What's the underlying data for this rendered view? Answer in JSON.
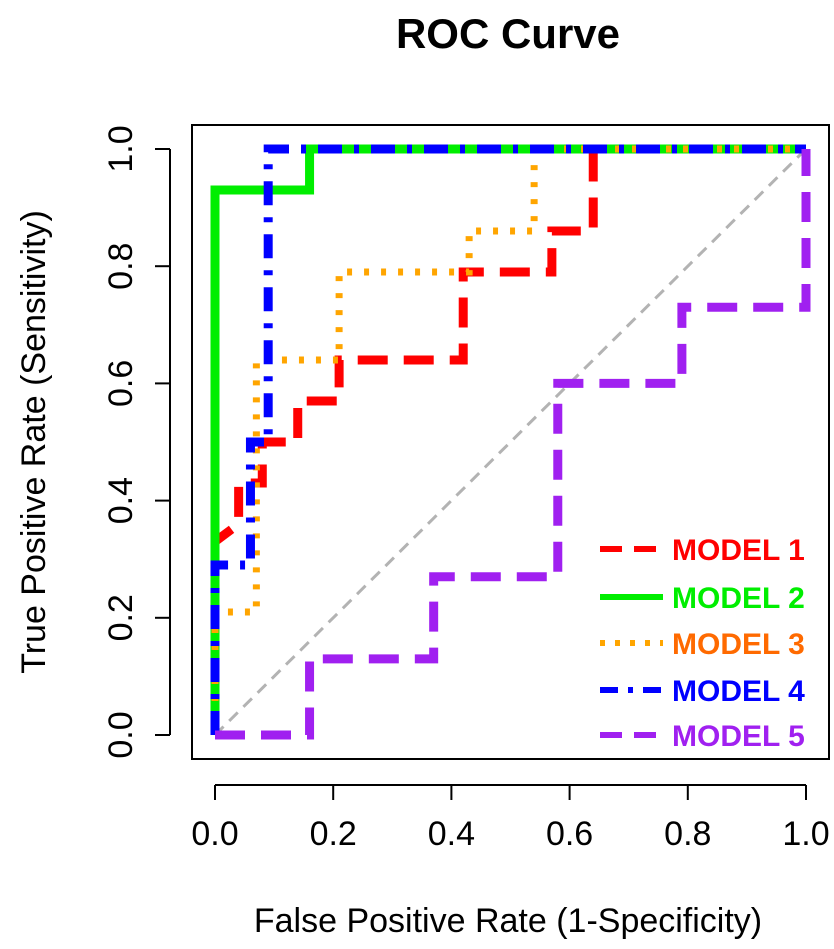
{
  "chart_data": {
    "type": "line",
    "title": "ROC Curve",
    "xlabel": "False Positive Rate (1-Specificity)",
    "ylabel": "True Positive Rate (Sensitivity)",
    "xlim": [
      0.0,
      1.0
    ],
    "ylim": [
      0.0,
      1.0
    ],
    "x_ticks": [
      0.0,
      0.2,
      0.4,
      0.6,
      0.8,
      1.0
    ],
    "y_ticks": [
      0.0,
      0.2,
      0.4,
      0.6,
      0.8,
      1.0
    ],
    "x_tick_labels": [
      "0.0",
      "0.2",
      "0.4",
      "0.6",
      "0.8",
      "1.0"
    ],
    "y_tick_labels": [
      "0.0",
      "0.2",
      "0.4",
      "0.6",
      "0.8",
      "1.0"
    ],
    "grid": false,
    "legend_position": "bottom-right",
    "reference_line": {
      "x": [
        0,
        1
      ],
      "y": [
        0,
        1
      ],
      "color": "#b3b3b3",
      "style": "dashed"
    },
    "series": [
      {
        "name": "MODEL 1",
        "color": "#ff0000",
        "dash": "long-dash",
        "x": [
          0.0,
          0.0,
          0.04,
          0.04,
          0.08,
          0.08,
          0.14,
          0.14,
          0.21,
          0.21,
          0.42,
          0.42,
          0.57,
          0.57,
          0.64,
          0.64,
          1.0
        ],
        "y": [
          0.0,
          0.33,
          0.36,
          0.43,
          0.43,
          0.5,
          0.5,
          0.57,
          0.57,
          0.64,
          0.64,
          0.79,
          0.79,
          0.86,
          0.86,
          1.0,
          1.0
        ]
      },
      {
        "name": "MODEL 2",
        "color": "#00ee00",
        "dash": "solid",
        "x": [
          0.0,
          0.0,
          0.16,
          0.16,
          1.0
        ],
        "y": [
          0.0,
          0.93,
          0.93,
          1.0,
          1.0
        ]
      },
      {
        "name": "MODEL 3",
        "color": "#ffa500",
        "dash": "dotted",
        "x": [
          0.0,
          0.0,
          0.07,
          0.07,
          0.21,
          0.21,
          0.43,
          0.43,
          0.54,
          0.54,
          1.0
        ],
        "y": [
          0.0,
          0.21,
          0.21,
          0.64,
          0.64,
          0.79,
          0.79,
          0.86,
          0.86,
          1.0,
          1.0
        ]
      },
      {
        "name": "MODEL 4",
        "color": "#0000ff",
        "dash": "dash-dot",
        "x": [
          0.0,
          0.0,
          0.06,
          0.06,
          0.09,
          0.09,
          1.0
        ],
        "y": [
          0.0,
          0.29,
          0.29,
          0.5,
          0.5,
          1.0,
          1.0
        ]
      },
      {
        "name": "MODEL 5",
        "color": "#a020f0",
        "dash": "long-dash",
        "x": [
          0.0,
          0.16,
          0.16,
          0.37,
          0.37,
          0.58,
          0.58,
          0.79,
          0.79,
          1.0,
          1.0
        ],
        "y": [
          0.0,
          0.0,
          0.13,
          0.13,
          0.27,
          0.27,
          0.6,
          0.6,
          0.73,
          0.73,
          1.0
        ]
      }
    ],
    "legend_text_colors": [
      "#ff0000",
      "#00ee00",
      "#ff6a00",
      "#0000ff",
      "#a020f0"
    ]
  }
}
